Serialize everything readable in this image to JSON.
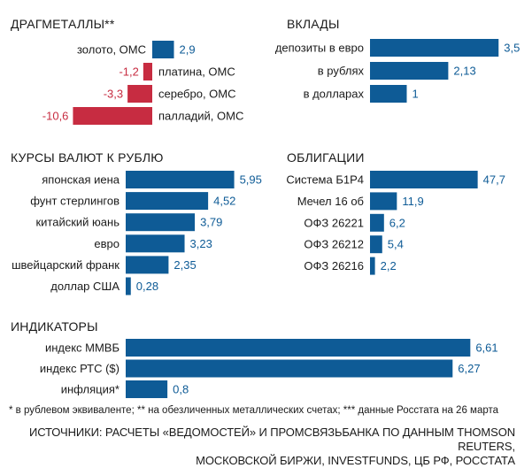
{
  "colors": {
    "positive": "#0e5b96",
    "negative": "#c72c41",
    "text": "#1a1a1a"
  },
  "chart_data": [
    {
      "type": "bar",
      "title": "ДРАГМЕТАЛЛЫ**",
      "categories": [
        "золото, ОМС",
        "платина, ОМС",
        "серебро, ОМС",
        "палладий, ОМС"
      ],
      "values": [
        2.9,
        -1.2,
        -3.3,
        -10.6
      ],
      "value_labels": [
        "2,9",
        "-1,2",
        "-3,3",
        "-10,6"
      ]
    },
    {
      "type": "bar",
      "title": "ВКЛАДЫ",
      "categories": [
        "депозиты в евро",
        "в рублях",
        "в долларах"
      ],
      "values": [
        3.5,
        2.13,
        1
      ],
      "value_labels": [
        "3,5",
        "2,13",
        "1"
      ]
    },
    {
      "type": "bar",
      "title": "КУРСЫ ВАЛЮТ К РУБЛЮ",
      "categories": [
        "японская иена",
        "фунт стерлингов",
        "китайский юань",
        "евро",
        "швейцарский франк",
        "доллар США"
      ],
      "values": [
        5.95,
        4.52,
        3.79,
        3.23,
        2.35,
        0.28
      ],
      "value_labels": [
        "5,95",
        "4,52",
        "3,79",
        "3,23",
        "2,35",
        "0,28"
      ]
    },
    {
      "type": "bar",
      "title": "ОБЛИГАЦИИ",
      "categories": [
        "Система Б1Р4",
        "Мечел 16 об",
        "ОФЗ 26221",
        "ОФЗ 26212",
        "ОФЗ 26216"
      ],
      "values": [
        47.7,
        11.9,
        6.2,
        5.4,
        2.2
      ],
      "value_labels": [
        "47,7",
        "11,9",
        "6,2",
        "5,4",
        "2,2"
      ]
    },
    {
      "type": "bar",
      "title": "ИНДИКАТОРЫ",
      "categories": [
        "индекс ММВБ",
        "индекс РТС ($)",
        "инфляция*"
      ],
      "values": [
        6.61,
        6.27,
        0.8
      ],
      "value_labels": [
        "6,61",
        "6,27",
        "0,8"
      ]
    }
  ],
  "footnote": "* в рублевом эквиваленте; ** на обезличенных металлических счетах; *** данные Росстата на 26 марта",
  "sources_line1": "ИСТОЧНИКИ:  РАСЧЕТЫ «ВЕДОМОСТЕЙ» И ПРОМСВЯЗЬБАНКА ПО ДАННЫМ THOMSON REUTERS,",
  "sources_line2": "МОСКОВСКОЙ БИРЖИ, INVESTFUNDS, ЦБ РФ, РОССТАТА"
}
